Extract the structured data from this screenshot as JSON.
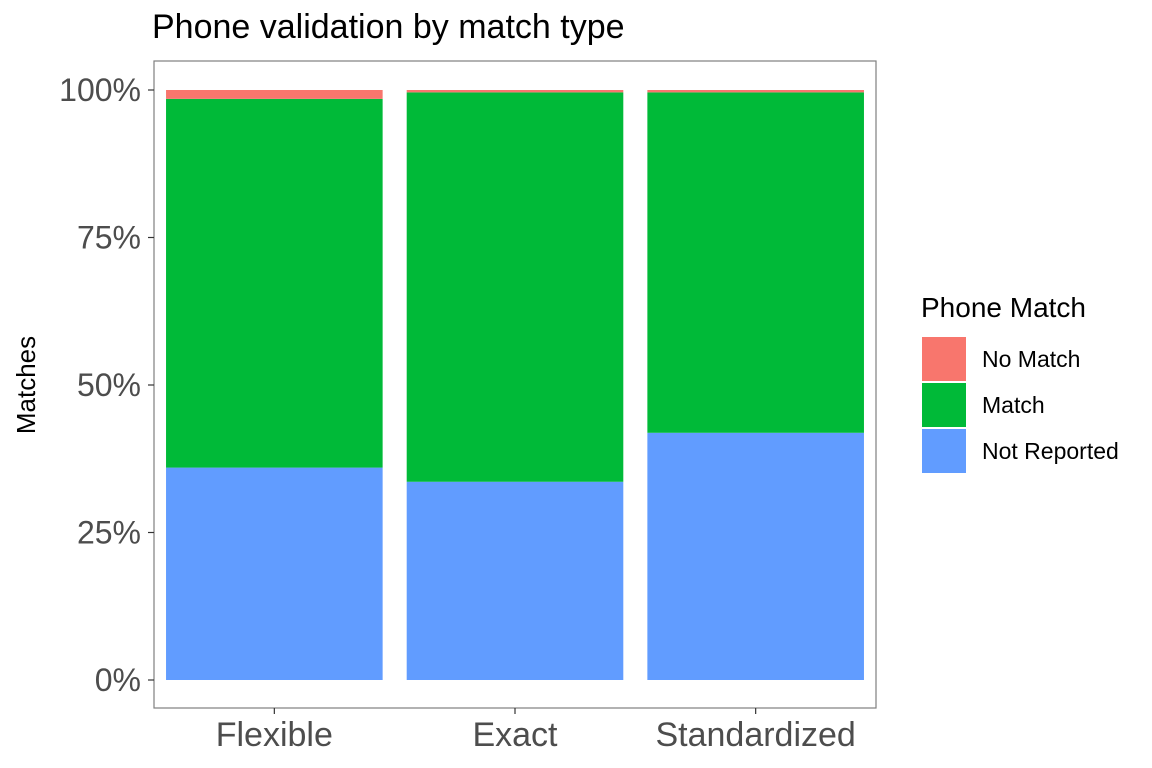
{
  "chart_data": {
    "type": "bar",
    "stacked": true,
    "title": "Phone validation by match type",
    "xlabel": "",
    "ylabel": "Matches",
    "categories": [
      "Flexible",
      "Exact",
      "Standardized"
    ],
    "series": [
      {
        "name": "Not Reported",
        "color": "#619cff",
        "values": [
          0.36,
          0.336,
          0.419
        ]
      },
      {
        "name": "Match",
        "color": "#00ba38",
        "values": [
          0.625,
          0.66,
          0.577
        ]
      },
      {
        "name": "No Match",
        "color": "#f8766d",
        "values": [
          0.015,
          0.004,
          0.004
        ]
      }
    ],
    "ylim": [
      0,
      1
    ],
    "yticks": [
      0,
      0.25,
      0.5,
      0.75,
      1
    ],
    "ytick_labels": [
      "0%",
      "25%",
      "50%",
      "75%",
      "100%"
    ],
    "legend": {
      "title": "Phone Match",
      "placement": "right",
      "order": [
        "No Match",
        "Match",
        "Not Reported"
      ]
    },
    "grid": false
  }
}
